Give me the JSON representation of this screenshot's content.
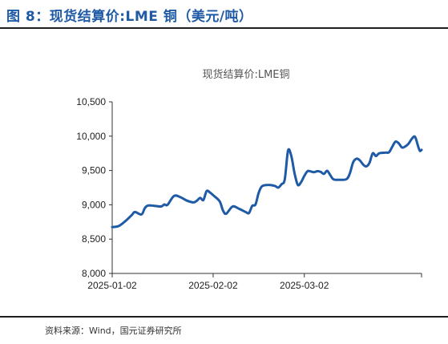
{
  "figure": {
    "header": "图 8：现货结算价:LME 铜（美元/吨）",
    "source": "资料来源：Wind，国元证券研究所"
  },
  "colors": {
    "accent": "#1f5aa6",
    "line": "#1f5aa6",
    "axis": "#333333"
  },
  "chart_data": {
    "type": "line",
    "title": "现货结算价:LME铜",
    "xlabel": "",
    "ylabel": "",
    "ylim": [
      8000,
      10500
    ],
    "yticks": [
      8000,
      8500,
      9000,
      9500,
      10000,
      10500
    ],
    "ytick_labels": [
      "8,000",
      "8,500",
      "9,000",
      "9,500",
      "10,000",
      "10,500"
    ],
    "xtick_labels": [
      "2025-01-02",
      "2025-02-02",
      "2025-03-02"
    ],
    "xtick_index": [
      0,
      31,
      59
    ],
    "x_count": 95,
    "grid": false,
    "legend": "none",
    "series": [
      {
        "points": [
          [
            0,
            8675
          ],
          [
            2,
            8690
          ],
          [
            4,
            8760
          ],
          [
            6,
            8850
          ],
          [
            7,
            8895
          ],
          [
            9,
            8860
          ],
          [
            10,
            8950
          ],
          [
            11,
            8990
          ],
          [
            13,
            8985
          ],
          [
            15,
            8975
          ],
          [
            16,
            9005
          ],
          [
            17,
            9000
          ],
          [
            19,
            9130
          ],
          [
            21,
            9110
          ],
          [
            23,
            9060
          ],
          [
            25,
            9035
          ],
          [
            26,
            9060
          ],
          [
            27,
            9100
          ],
          [
            28,
            9070
          ],
          [
            29,
            9200
          ],
          [
            30,
            9180
          ],
          [
            31,
            9140
          ],
          [
            33,
            9050
          ],
          [
            34,
            8920
          ],
          [
            35,
            8870
          ],
          [
            37,
            8975
          ],
          [
            39,
            8940
          ],
          [
            41,
            8895
          ],
          [
            42,
            8880
          ],
          [
            43,
            8985
          ],
          [
            44,
            9005
          ],
          [
            45,
            9175
          ],
          [
            46,
            9270
          ],
          [
            48,
            9290
          ],
          [
            50,
            9275
          ],
          [
            51,
            9250
          ],
          [
            52,
            9300
          ],
          [
            53,
            9370
          ],
          [
            54,
            9790
          ],
          [
            55,
            9710
          ],
          [
            56,
            9460
          ],
          [
            57,
            9290
          ],
          [
            58,
            9330
          ],
          [
            59,
            9420
          ],
          [
            60,
            9490
          ],
          [
            61,
            9485
          ],
          [
            62,
            9475
          ],
          [
            63,
            9490
          ],
          [
            64,
            9480
          ],
          [
            65,
            9450
          ],
          [
            66,
            9495
          ],
          [
            67,
            9430
          ],
          [
            68,
            9370
          ],
          [
            70,
            9365
          ],
          [
            72,
            9375
          ],
          [
            73,
            9460
          ],
          [
            74,
            9620
          ],
          [
            75,
            9670
          ],
          [
            76,
            9650
          ],
          [
            77,
            9590
          ],
          [
            78,
            9560
          ],
          [
            79,
            9610
          ],
          [
            80,
            9750
          ],
          [
            81,
            9710
          ],
          [
            82,
            9750
          ],
          [
            84,
            9760
          ],
          [
            85,
            9765
          ],
          [
            86,
            9845
          ],
          [
            87,
            9920
          ],
          [
            88,
            9895
          ],
          [
            89,
            9835
          ],
          [
            90,
            9850
          ],
          [
            91,
            9890
          ],
          [
            92,
            9960
          ],
          [
            93,
            9990
          ],
          [
            94,
            9845
          ],
          [
            94.5,
            9785
          ],
          [
            95,
            9800
          ]
        ]
      }
    ]
  }
}
